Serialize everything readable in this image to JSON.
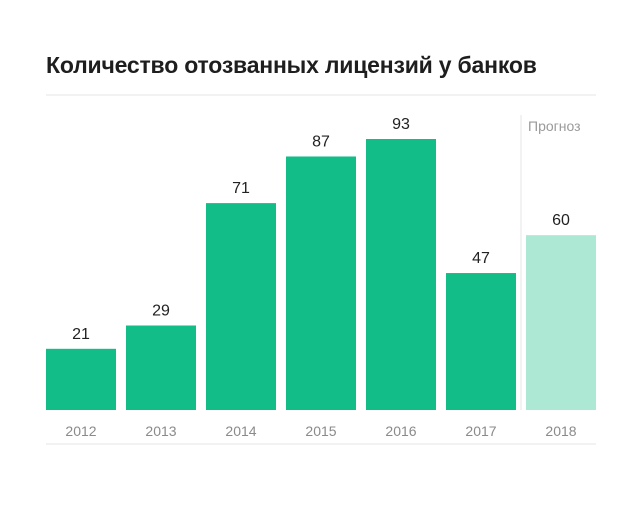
{
  "title": "Количество отозванных лицензий у банков",
  "chart_data": {
    "type": "bar",
    "title": "Количество отозванных лицензий у банков",
    "categories": [
      "2012",
      "2013",
      "2014",
      "2015",
      "2016",
      "2017",
      "2018"
    ],
    "values": [
      21,
      29,
      71,
      87,
      93,
      47,
      60
    ],
    "forecast": [
      false,
      false,
      false,
      false,
      false,
      false,
      true
    ],
    "forecast_label": "Прогноз",
    "xlabel": "",
    "ylabel": "",
    "ylim": [
      0,
      93
    ],
    "grid": false,
    "colors": {
      "actual": "#12bd88",
      "forecast": "#ade8d4",
      "rule": "#e6e6e6",
      "text": "#222222",
      "tick": "#8a8a8a"
    }
  }
}
